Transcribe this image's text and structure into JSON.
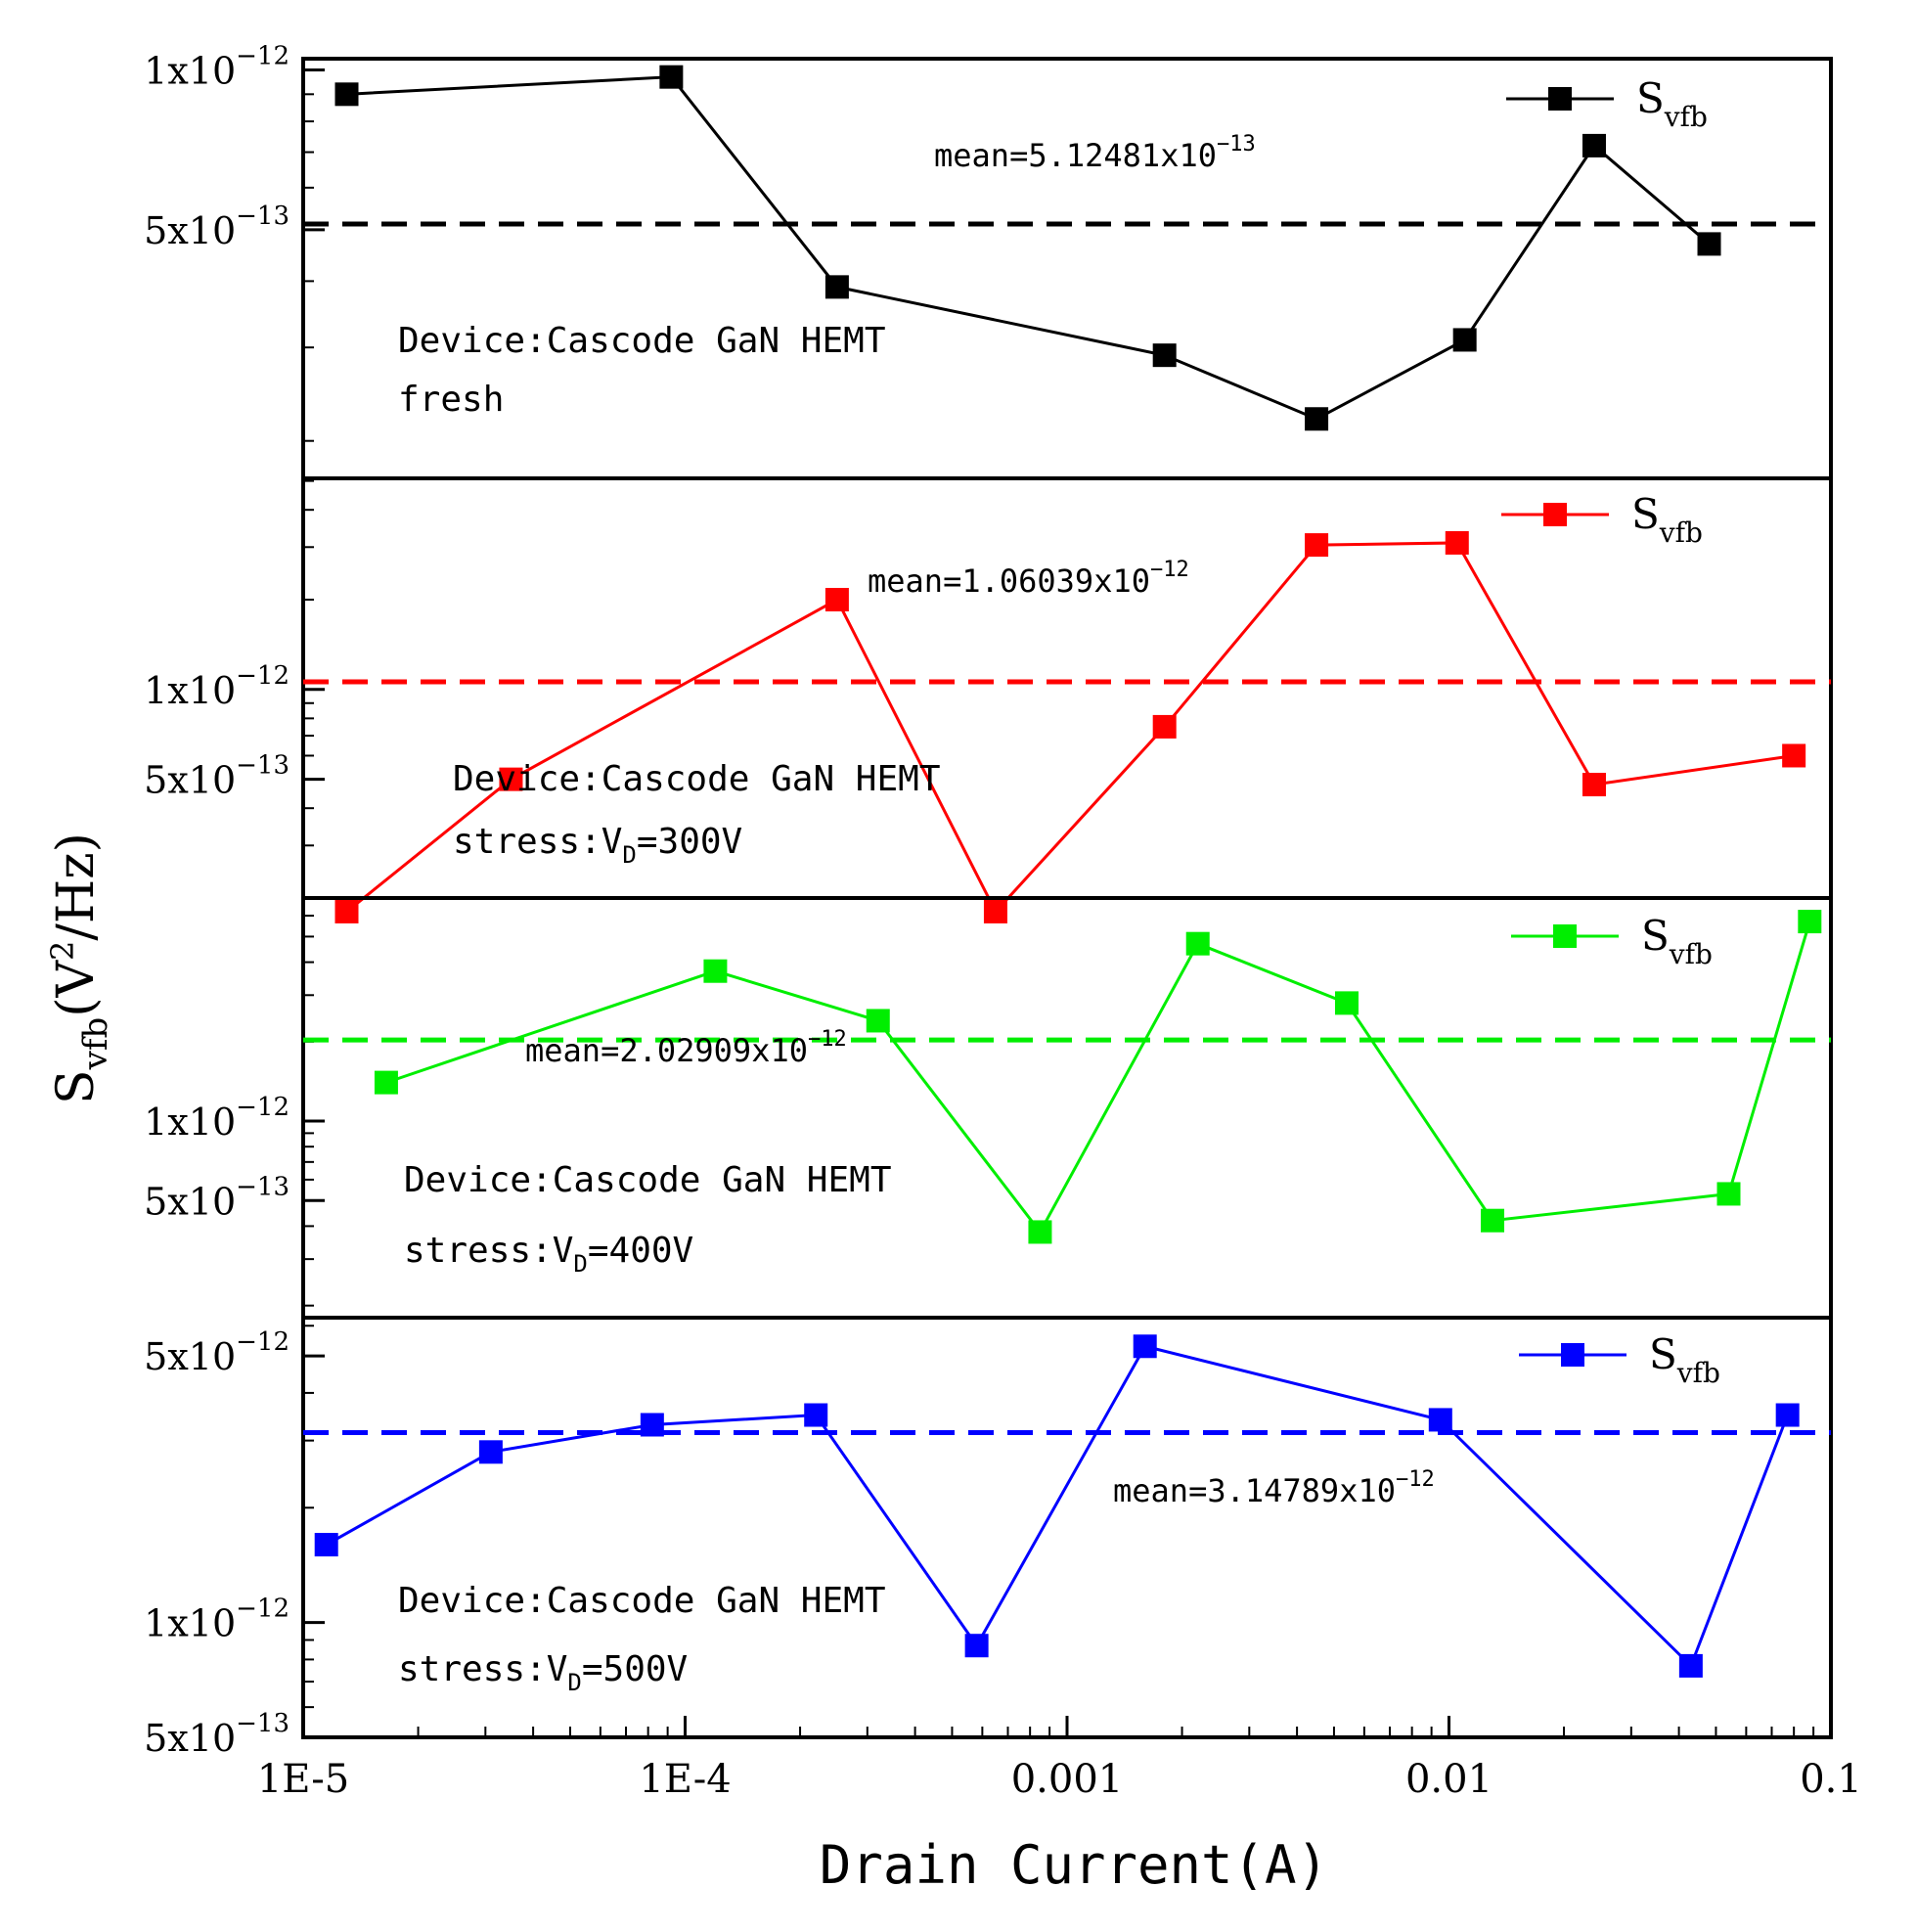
{
  "figure": {
    "ylabel_main": "S",
    "ylabel_sub": "vfb",
    "ylabel_paren_open": "(V",
    "ylabel_sup": "2",
    "ylabel_rest": "/Hz)",
    "xlabel": "Drain Current(A)",
    "x_ticks": [
      {
        "value": 1e-05,
        "label": "1E-5"
      },
      {
        "value": 0.0001,
        "label": "1E-4"
      },
      {
        "value": 0.001,
        "label": "0.001"
      },
      {
        "value": 0.01,
        "label": "0.01"
      },
      {
        "value": 0.1,
        "label": "0.1"
      }
    ]
  },
  "chart_data": [
    {
      "type": "line",
      "x_scale": "log",
      "y_scale": "log",
      "xlim": [
        1e-05,
        0.1
      ],
      "ylim": [
        1.7e-13,
        1.05e-12
      ],
      "color": "#000000",
      "series": [
        {
          "name": "Svfb",
          "x": [
            1.3e-05,
            9.2e-05,
            0.00025,
            0.0018,
            0.0045,
            0.011,
            0.024,
            0.048
          ],
          "values": [
            9e-13,
            9.7e-13,
            3.9e-13,
            2.9e-13,
            2.2e-13,
            3.1e-13,
            7.2e-13,
            4.7e-13
          ]
        }
      ],
      "mean_value": 5.12481e-13,
      "mean_label": {
        "prefix": "mean=5.12481x10",
        "exp": "−13"
      },
      "legend": {
        "main": "S",
        "sub": "vfb"
      },
      "y_ticks": [
        {
          "value": 1e-12,
          "mant": "1x10",
          "exp": "−12"
        },
        {
          "value": 5e-13,
          "mant": "5x10",
          "exp": "−13"
        }
      ],
      "annotation": [
        {
          "text": "Device:Cascode GaN HEMT"
        },
        {
          "text": "fresh"
        }
      ]
    },
    {
      "type": "line",
      "x_scale": "log",
      "y_scale": "log",
      "xlim": [
        1e-05,
        0.1
      ],
      "ylim": [
        2e-13,
        5.1e-12
      ],
      "color": "#ff0000",
      "series": [
        {
          "name": "Svfb",
          "x": [
            1.3e-05,
            3.5e-05,
            0.00025,
            0.00065,
            0.0018,
            0.0045,
            0.0105,
            0.024,
            0.08
          ],
          "values": [
            1.8e-13,
            5e-13,
            2e-12,
            1.8e-13,
            7.5e-13,
            3.05e-12,
            3.1e-12,
            4.8e-13,
            6e-13
          ]
        }
      ],
      "mean_value": 1.06039e-12,
      "mean_label": {
        "prefix": "mean=1.06039x10",
        "exp": "−12"
      },
      "legend": {
        "main": "S",
        "sub": "vfb"
      },
      "y_ticks": [
        {
          "value": 1e-12,
          "mant": "1x10",
          "exp": "−12"
        },
        {
          "value": 5e-13,
          "mant": "5x10",
          "exp": "−13"
        }
      ],
      "annotation": [
        {
          "text": "Device:Cascode GaN HEMT"
        },
        {
          "text": "stress:V",
          "sub": "D",
          "tail": "=300V"
        }
      ]
    },
    {
      "type": "line",
      "x_scale": "log",
      "y_scale": "log",
      "xlim": [
        1e-05,
        0.1
      ],
      "ylim": [
        1.8e-13,
        7e-12
      ],
      "color": "#00ee00",
      "series": [
        {
          "name": "Svfb",
          "x": [
            1.65e-05,
            0.00012,
            0.00032,
            0.00085,
            0.0022,
            0.0054,
            0.013,
            0.054,
            0.088
          ],
          "values": [
            1.4e-12,
            3.7e-12,
            2.4e-12,
            3.8e-13,
            4.7e-12,
            2.8e-12,
            4.2e-13,
            5.3e-13,
            5.7e-12
          ]
        }
      ],
      "mean_value": 2.02909e-12,
      "mean_label": {
        "prefix": "mean=2.02909x10",
        "exp": "−12"
      },
      "legend": {
        "main": "S",
        "sub": "vfb"
      },
      "y_ticks": [
        {
          "value": 1e-12,
          "mant": "1x10",
          "exp": "−12"
        },
        {
          "value": 5e-13,
          "mant": "5x10",
          "exp": "−13"
        }
      ],
      "annotation": [
        {
          "text": "Device:Cascode GaN HEMT"
        },
        {
          "text": "stress:V",
          "sub": "D",
          "tail": "=400V"
        }
      ]
    },
    {
      "type": "line",
      "x_scale": "log",
      "y_scale": "log",
      "xlim": [
        1e-05,
        0.1
      ],
      "ylim": [
        5e-13,
        6.3e-12
      ],
      "color": "#0000ff",
      "series": [
        {
          "name": "Svfb",
          "x": [
            1.15e-05,
            3.1e-05,
            8.2e-05,
            0.00022,
            0.00058,
            0.0016,
            0.0095,
            0.043,
            0.077
          ],
          "values": [
            1.6e-12,
            2.8e-12,
            3.3e-12,
            3.5e-12,
            8.7e-13,
            5.3e-12,
            3.4e-12,
            7.7e-13,
            3.5e-12
          ]
        }
      ],
      "mean_value": 3.14789e-12,
      "mean_label": {
        "prefix": "mean=3.14789x10",
        "exp": "−12"
      },
      "legend": {
        "main": "S",
        "sub": "vfb"
      },
      "y_ticks": [
        {
          "value": 5e-12,
          "mant": "5x10",
          "exp": "−12"
        },
        {
          "value": 1e-12,
          "mant": "1x10",
          "exp": "−12"
        },
        {
          "value": 5e-13,
          "mant": "5x10",
          "exp": "−13"
        }
      ],
      "annotation": [
        {
          "text": "Device:Cascode GaN HEMT"
        },
        {
          "text": "stress:V",
          "sub": "D",
          "tail": "=500V"
        }
      ]
    }
  ]
}
